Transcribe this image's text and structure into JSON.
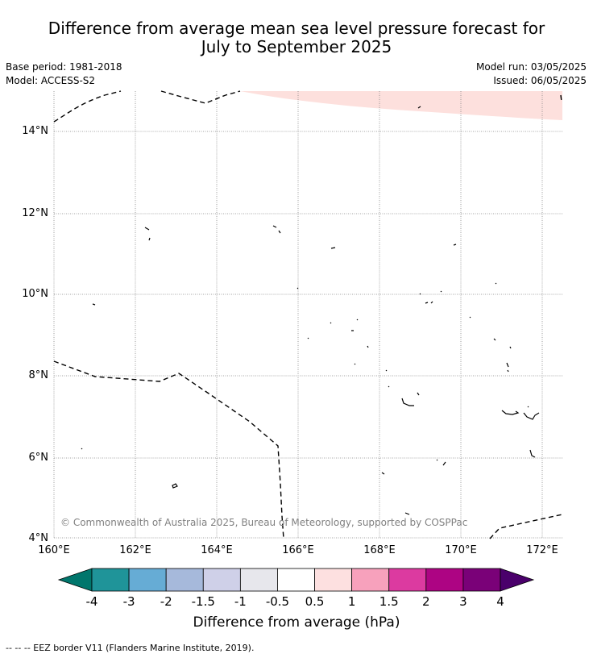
{
  "title": {
    "line1": "Difference from average mean sea level pressure forecast for",
    "line2": "July to September 2025"
  },
  "meta": {
    "base_period": "Base period: 1981-2018",
    "model": "Model: ACCESS-S2",
    "model_run": "Model run: 03/05/2025",
    "issued": "Issued: 06/05/2025"
  },
  "map": {
    "lat_ticks": [
      "14°N",
      "12°N",
      "10°N",
      "8°N",
      "6°N",
      "4°N"
    ],
    "lon_ticks": [
      "160°E",
      "162°E",
      "164°E",
      "166°E",
      "168°E",
      "170°E",
      "172°E"
    ],
    "anomaly_region_color": "#fde0dd",
    "copyright": "© Commonwealth of Australia 2025, Bureau of Meteorology, supported by COSPPac"
  },
  "colorbar": {
    "labels": [
      "-4",
      "-3",
      "-2",
      "-1.5",
      "-1",
      "-0.5",
      "0.5",
      "1",
      "1.5",
      "2",
      "3",
      "4"
    ],
    "colors": [
      "#00766c",
      "#1f9499",
      "#66acd5",
      "#a6b9db",
      "#cfd0e8",
      "#e7e7ec",
      "#ffffff",
      "#fde0e0",
      "#f7a1bc",
      "#dc3aa0",
      "#ad0483",
      "#7a0178",
      "#4a006b"
    ],
    "title": "Difference from average (hPa)"
  },
  "legend": {
    "eez": "--  --  -- EEZ border V11 (Flanders Marine Institute, 2019)."
  }
}
